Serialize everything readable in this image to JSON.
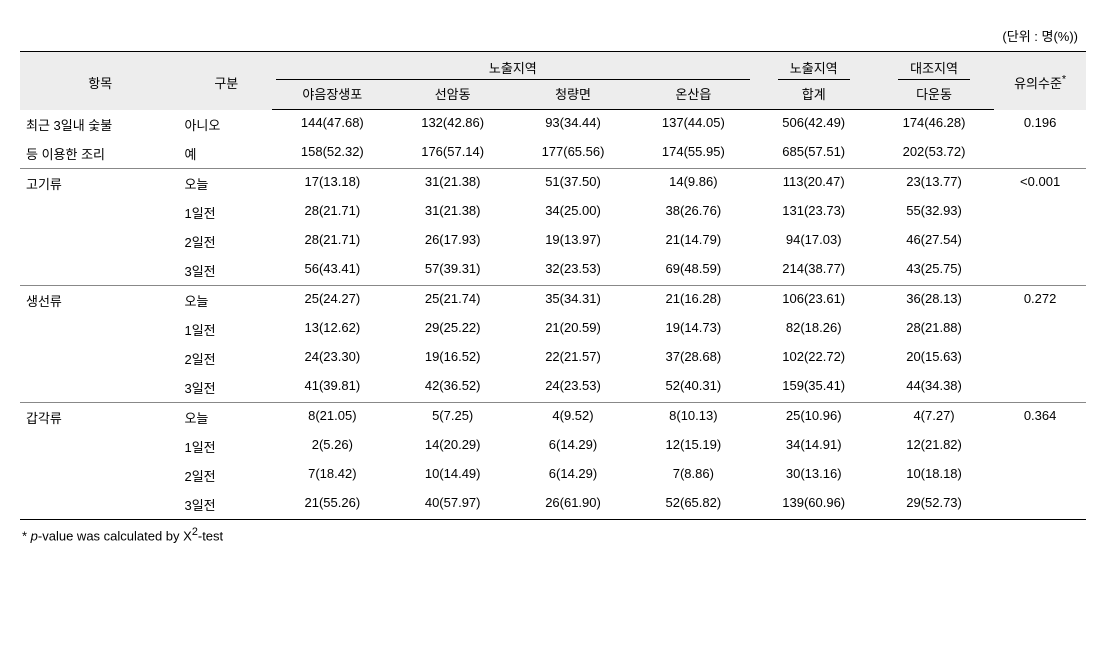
{
  "unit_caption": "(단위 : 명(%))",
  "headers": {
    "item": "항목",
    "gubun": "구분",
    "exposed_group": "노출지역",
    "exposed_sub": [
      "야음장생포",
      "선암동",
      "청량면",
      "온산읍"
    ],
    "exposed_total_top": "노출지역",
    "exposed_total_sub": "합계",
    "control_top": "대조지역",
    "control_sub": "다운동",
    "sig": "유의수준",
    "sig_sup": "*"
  },
  "groups": [
    {
      "label_lines": [
        "최근 3일내 숯불",
        "등 이용한 조리"
      ],
      "rows": [
        {
          "sub": "아니오",
          "v": [
            "144(47.68)",
            "132(42.86)",
            "93(34.44)",
            "137(44.05)",
            "506(42.49)",
            "174(46.28)"
          ],
          "sig": "0.196"
        },
        {
          "sub": "예",
          "v": [
            "158(52.32)",
            "176(57.14)",
            "177(65.56)",
            "174(55.95)",
            "685(57.51)",
            "202(53.72)"
          ],
          "sig": ""
        }
      ]
    },
    {
      "label_lines": [
        "고기류"
      ],
      "rows": [
        {
          "sub": "오늘",
          "v": [
            "17(13.18)",
            "31(21.38)",
            "51(37.50)",
            "14(9.86)",
            "113(20.47)",
            "23(13.77)"
          ],
          "sig": "<0.001"
        },
        {
          "sub": "1일전",
          "v": [
            "28(21.71)",
            "31(21.38)",
            "34(25.00)",
            "38(26.76)",
            "131(23.73)",
            "55(32.93)"
          ],
          "sig": ""
        },
        {
          "sub": "2일전",
          "v": [
            "28(21.71)",
            "26(17.93)",
            "19(13.97)",
            "21(14.79)",
            "94(17.03)",
            "46(27.54)"
          ],
          "sig": ""
        },
        {
          "sub": "3일전",
          "v": [
            "56(43.41)",
            "57(39.31)",
            "32(23.53)",
            "69(48.59)",
            "214(38.77)",
            "43(25.75)"
          ],
          "sig": ""
        }
      ]
    },
    {
      "label_lines": [
        "생선류"
      ],
      "rows": [
        {
          "sub": "오늘",
          "v": [
            "25(24.27)",
            "25(21.74)",
            "35(34.31)",
            "21(16.28)",
            "106(23.61)",
            "36(28.13)"
          ],
          "sig": "0.272"
        },
        {
          "sub": "1일전",
          "v": [
            "13(12.62)",
            "29(25.22)",
            "21(20.59)",
            "19(14.73)",
            "82(18.26)",
            "28(21.88)"
          ],
          "sig": ""
        },
        {
          "sub": "2일전",
          "v": [
            "24(23.30)",
            "19(16.52)",
            "22(21.57)",
            "37(28.68)",
            "102(22.72)",
            "20(15.63)"
          ],
          "sig": ""
        },
        {
          "sub": "3일전",
          "v": [
            "41(39.81)",
            "42(36.52)",
            "24(23.53)",
            "52(40.31)",
            "159(35.41)",
            "44(34.38)"
          ],
          "sig": ""
        }
      ]
    },
    {
      "label_lines": [
        "갑각류"
      ],
      "rows": [
        {
          "sub": "오늘",
          "v": [
            "8(21.05)",
            "5(7.25)",
            "4(9.52)",
            "8(10.13)",
            "25(10.96)",
            "4(7.27)"
          ],
          "sig": "0.364"
        },
        {
          "sub": "1일전",
          "v": [
            "2(5.26)",
            "14(20.29)",
            "6(14.29)",
            "12(15.19)",
            "34(14.91)",
            "12(21.82)"
          ],
          "sig": ""
        },
        {
          "sub": "2일전",
          "v": [
            "7(18.42)",
            "10(14.49)",
            "6(14.29)",
            "7(8.86)",
            "30(13.16)",
            "10(18.18)"
          ],
          "sig": ""
        },
        {
          "sub": "3일전",
          "v": [
            "21(55.26)",
            "40(57.97)",
            "26(61.90)",
            "52(65.82)",
            "139(60.96)",
            "29(52.73)"
          ],
          "sig": ""
        }
      ]
    }
  ],
  "footnote": {
    "prefix": "* ",
    "pterm": "p",
    "mid": "-value was calculated by X",
    "sup": "2",
    "suffix": "-test"
  }
}
